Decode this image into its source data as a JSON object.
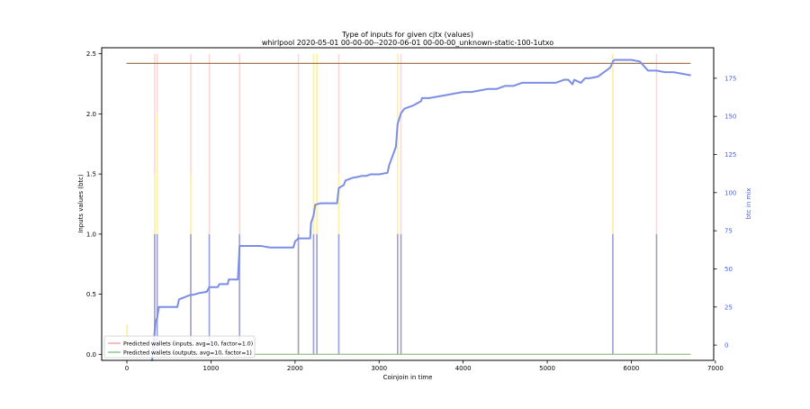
{
  "chart_data": {
    "type": "line",
    "title": "Type of inputs for given cjtx (values)",
    "subtitle": "whirlpool 2020-05-01 00-00-00--2020-06-01 00-00-00_unknown-static-100-1utxo",
    "xlabel": "Coinjoin in time",
    "ylabel_left": "Inputs values (btc)",
    "ylabel_right": "btc in mix",
    "xlim": [
      -300,
      6980
    ],
    "ylim_left": [
      -0.05,
      2.55
    ],
    "ylim_right": [
      -10,
      195
    ],
    "x_ticks": [
      0,
      1000,
      2000,
      3000,
      4000,
      5000,
      6000,
      7000
    ],
    "y_ticks_left": [
      0.0,
      0.5,
      1.0,
      1.5,
      2.0,
      2.5
    ],
    "y_ticks_right": [
      0,
      25,
      50,
      75,
      100,
      125,
      150,
      175
    ],
    "grid": false,
    "legend_position": "lower-left",
    "colors": {
      "pool_inputs": "#7e86e4",
      "btc_in_mix": "#7a8ee6",
      "predicted_inputs": "#f5a5a5",
      "predicted_outputs": "#8cc98c",
      "flat_line": "#9c7a55",
      "faint_pink": "#ffd7d7",
      "faint_yellow": "#fff2a8",
      "right_axis_text": "#4a62d8"
    },
    "series": [
      {
        "name": "Predicted wallets (inputs, avg=10, factor=1.0)",
        "axis": "left",
        "x": [
          0,
          6700
        ],
        "y": [
          0.0,
          0.0
        ]
      },
      {
        "name": "Predicted wallets (outputs, avg=10, factor=1)",
        "axis": "left",
        "x": [
          0,
          6700
        ],
        "y": [
          0.0,
          0.0
        ]
      },
      {
        "axis": "left",
        "x": [
          0,
          6700
        ],
        "y": [
          2.42,
          2.42
        ]
      },
      {
        "axis": "right",
        "x": [
          300,
          340,
          360,
          380,
          420,
          600,
          620,
          760,
          790,
          850,
          950,
          980,
          1080,
          1100,
          1200,
          1210,
          1250,
          1320,
          1340,
          1400,
          1600,
          1700,
          1800,
          1980,
          2000,
          2040,
          2060,
          2180,
          2190,
          2220,
          2240,
          2300,
          2320,
          2400,
          2500,
          2520,
          2580,
          2600,
          2700,
          2720,
          2800,
          2850,
          2900,
          3000,
          3100,
          3120,
          3200,
          3220,
          3260,
          3300,
          3400,
          3500,
          3510,
          3600,
          3700,
          3800,
          3900,
          4000,
          4100,
          4200,
          4300,
          4400,
          4500,
          4600,
          4700,
          4800,
          4900,
          5000,
          5100,
          5200,
          5250,
          5300,
          5320,
          5400,
          5450,
          5500,
          5600,
          5700,
          5750,
          5780,
          5800,
          5900,
          6000,
          6100,
          6150,
          6200,
          6300,
          6400,
          6500,
          6600,
          6700
        ],
        "y": [
          -10,
          15,
          18,
          25,
          25,
          25,
          30,
          33,
          33,
          34,
          35,
          38,
          38,
          40,
          40,
          43,
          43,
          43,
          65,
          65,
          65,
          64,
          64,
          64,
          68,
          70,
          70,
          70,
          80,
          85,
          92,
          93,
          93,
          93,
          93,
          103,
          105,
          108,
          110,
          110,
          111,
          111,
          112,
          112,
          113,
          118,
          130,
          145,
          152,
          155,
          157,
          160,
          162,
          162,
          163,
          164,
          165,
          166,
          166,
          167,
          168,
          168,
          170,
          170,
          172,
          172,
          172,
          172,
          172,
          174,
          174,
          171,
          174,
          172,
          175,
          175,
          176,
          180,
          182,
          186,
          187,
          187,
          187,
          186,
          183,
          180,
          180,
          179,
          179,
          178,
          177
        ]
      }
    ],
    "bars": {
      "axis": "left",
      "stacks": [
        {
          "x": 0,
          "blue": 0,
          "yellow": 0.25,
          "pink": 0.25
        },
        {
          "x": 330,
          "blue": 1.0,
          "yellow": 1.5,
          "pink": 2.5
        },
        {
          "x": 360,
          "blue": 1.0,
          "yellow": 2.0,
          "pink": 2.5
        },
        {
          "x": 760,
          "blue": 1.0,
          "yellow": 1.5,
          "pink": 2.5
        },
        {
          "x": 980,
          "blue": 1.0,
          "yellow": 1.0,
          "pink": 2.5
        },
        {
          "x": 1340,
          "blue": 1.0,
          "yellow": 1.0,
          "pink": 2.5
        },
        {
          "x": 2040,
          "blue": 1.0,
          "yellow": 1.0,
          "pink": 2.5
        },
        {
          "x": 2220,
          "blue": 1.0,
          "yellow": 2.5,
          "pink": 2.5
        },
        {
          "x": 2260,
          "blue": 1.0,
          "yellow": 2.5,
          "pink": 2.5
        },
        {
          "x": 2520,
          "blue": 1.0,
          "yellow": 1.5,
          "pink": 2.5
        },
        {
          "x": 3220,
          "blue": 1.0,
          "yellow": 2.5,
          "pink": 2.5
        },
        {
          "x": 3260,
          "blue": 1.0,
          "yellow": 1.0,
          "pink": 2.5
        },
        {
          "x": 5780,
          "blue": 1.0,
          "yellow": 2.5,
          "pink": 2.5
        },
        {
          "x": 6300,
          "blue": 1.0,
          "yellow": 1.0,
          "pink": 2.5
        }
      ]
    }
  }
}
